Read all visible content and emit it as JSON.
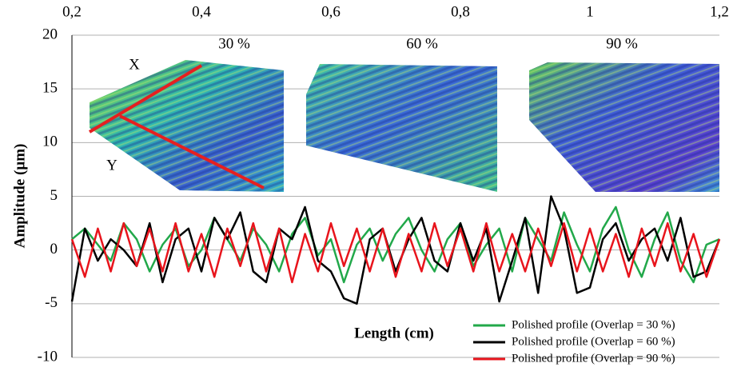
{
  "chart_data": {
    "type": "line",
    "ylabel": "Amplitude (µm)",
    "xlabel": "Length (cm)",
    "xlim": [
      0.2,
      1.2
    ],
    "xticks": [
      {
        "value": 0.2,
        "label": "0,2"
      },
      {
        "value": 0.4,
        "label": "0,4"
      },
      {
        "value": 0.6,
        "label": "0,6"
      },
      {
        "value": 0.8,
        "label": "0,8"
      },
      1,
      {
        "value": 1.2,
        "label": "1,2"
      }
    ],
    "ylim": [
      -10,
      20
    ],
    "yticks": [
      -10,
      -5,
      0,
      5,
      10,
      15,
      20
    ],
    "grid": true,
    "legend": "lower right",
    "annotations": [
      "30 %",
      "60 %",
      "90 %",
      "X",
      "Y"
    ],
    "x": [
      0.2,
      0.22,
      0.24,
      0.26,
      0.28,
      0.3,
      0.32,
      0.34,
      0.36,
      0.38,
      0.4,
      0.42,
      0.44,
      0.46,
      0.48,
      0.5,
      0.52,
      0.54,
      0.56,
      0.58,
      0.6,
      0.62,
      0.64,
      0.66,
      0.68,
      0.7,
      0.72,
      0.74,
      0.76,
      0.78,
      0.8,
      0.82,
      0.84,
      0.86,
      0.88,
      0.9,
      0.92,
      0.94,
      0.96,
      0.98,
      1,
      1.02,
      1.04,
      1.06,
      1.08,
      1.1,
      1.12,
      1.14,
      1.16,
      1.18,
      1.2
    ],
    "series": [
      {
        "name": "Polished profile (Overlap = 30 %)",
        "color": "#22a84a",
        "values": [
          1,
          2,
          0.5,
          -1,
          2.5,
          1,
          -2,
          0.5,
          2,
          -1.5,
          0,
          3,
          1,
          -1,
          2,
          0.5,
          -2,
          1.5,
          3,
          -0.5,
          1,
          -3,
          0.5,
          2,
          -1,
          1.5,
          3,
          0,
          -2,
          1,
          2.5,
          -1.5,
          0.5,
          2,
          -2,
          3,
          1,
          -1,
          3.5,
          0.5,
          -2,
          2,
          4,
          0,
          -2.5,
          1,
          3.5,
          -1,
          -3,
          0.5,
          1
        ]
      },
      {
        "name": "Polished profile (Overlap = 60 %)",
        "color": "#000000",
        "values": [
          -4.8,
          2,
          -1,
          1,
          0,
          -1.5,
          2.5,
          -3,
          1,
          2,
          -2,
          3,
          1,
          3.5,
          -2,
          -3,
          2,
          1,
          4,
          -1,
          -2,
          -4.5,
          -5,
          1,
          2,
          -2,
          1,
          3,
          -1,
          -2,
          2.5,
          -1,
          2,
          -4.8,
          -1,
          3,
          -4,
          5,
          2,
          -4,
          -3.5,
          1,
          2.5,
          -1,
          1,
          2,
          -1,
          3,
          -2.5,
          -2,
          1
        ]
      },
      {
        "name": "Polished profile  (Overlap = 90 %)",
        "color": "#e8141c",
        "values": [
          1,
          -2.5,
          2,
          -2,
          2.5,
          -1.5,
          2,
          -2,
          2.5,
          -2,
          1.5,
          -2.5,
          2,
          -1.5,
          2.5,
          -2,
          2,
          -3,
          1.5,
          -2,
          2.5,
          -1.5,
          2,
          -2,
          2,
          -2.5,
          1.5,
          -2,
          2.5,
          -1.5,
          2,
          -2,
          2.5,
          -2,
          1.5,
          -2,
          2,
          -1.5,
          2.5,
          -2,
          2,
          -2,
          1.5,
          -2.5,
          2,
          -1.5,
          2.5,
          -2,
          1.5,
          -2.5,
          1
        ]
      }
    ]
  }
}
